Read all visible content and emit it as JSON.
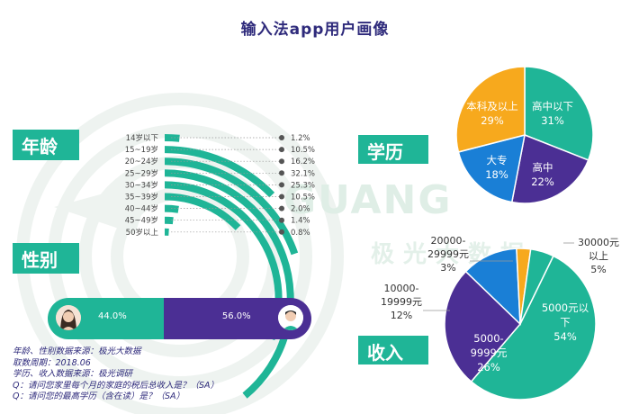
{
  "title": "输入法app用户画像",
  "watermark": {
    "brand": "GUANG",
    "sub": "极光大数据"
  },
  "sections": {
    "age": "年龄",
    "gender": "性别",
    "education": "学历",
    "income": "收入"
  },
  "colors": {
    "teal": "#1fb597",
    "purple": "#4b2f94",
    "blue": "#1a7fd6",
    "orange": "#f7a91d",
    "title": "#2e2a7b"
  },
  "icons": [
    "female-avatar-icon",
    "male-avatar-icon"
  ],
  "notes": [
    "年龄、性别数据来源：极光大数据",
    "取数周期：2018.06",
    "学历、收入数据来源：极光调研",
    "Q：请问您家里每个月的家庭的税后总收入是？（SA）",
    "Q：请问您的最高学历（含在读）是？（SA）"
  ],
  "chart_data": [
    {
      "type": "bar",
      "name": "年龄",
      "categories": [
        "14岁以下",
        "15~19岁",
        "20~24岁",
        "25~29岁",
        "30~34岁",
        "35~39岁",
        "40~44岁",
        "45~49岁",
        "50岁以上"
      ],
      "values": [
        1.2,
        10.5,
        16.2,
        32.1,
        25.3,
        10.5,
        2.0,
        1.4,
        0.8
      ],
      "value_labels": [
        "1.2%",
        "10.5%",
        "16.2%",
        "32.1%",
        "25.3%",
        "10.5%",
        "2.0%",
        "1.4%",
        "0.8%"
      ],
      "unit": "%"
    },
    {
      "type": "bar",
      "name": "性别",
      "categories": [
        "female",
        "male"
      ],
      "values": [
        44.0,
        56.0
      ],
      "value_labels": [
        "44.0%",
        "56.0%"
      ],
      "unit": "%"
    },
    {
      "type": "pie",
      "name": "学历",
      "labels": [
        "高中以下",
        "高中",
        "大专",
        "本科及以上"
      ],
      "values": [
        31,
        22,
        18,
        29
      ],
      "value_labels": [
        "31%",
        "22%",
        "18%",
        "29%"
      ],
      "colors": [
        "#1fb597",
        "#4b2f94",
        "#1a7fd6",
        "#f7a91d"
      ]
    },
    {
      "type": "pie",
      "name": "收入",
      "labels": [
        "5000元以下",
        "5000-9999元",
        "10000-19999元",
        "20000-29999元",
        "30000元以上"
      ],
      "values": [
        54,
        26,
        12,
        3,
        5
      ],
      "value_labels": [
        "54%",
        "26%",
        "12%",
        "3%",
        "5%"
      ],
      "colors": [
        "#1fb597",
        "#4b2f94",
        "#1a7fd6",
        "#f7a91d",
        "#1fb597"
      ]
    }
  ]
}
